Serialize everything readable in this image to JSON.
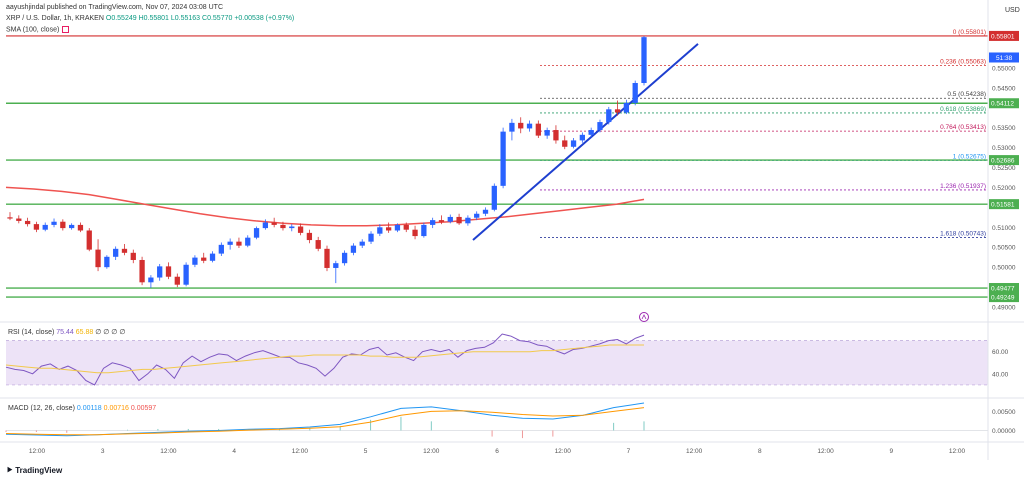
{
  "header": {
    "published": "aayushjindal published on TradingView.com, Nov 07, 2024 03:08 UTC",
    "symbol": "XRP / U.S. Dollar, 1h, KRAKEN",
    "ohlc": "O0.55249 H0.55801 L0.55163 C0.55770 +0.00538 (+0.97%)",
    "sma": "SMA (100, close)",
    "currency": "USD",
    "countdown": "51:38"
  },
  "indicators": {
    "rsi": {
      "label": "RSI (14, close)",
      "value": "75.44",
      "ma": "65.88",
      "extras": "∅ ∅ ∅ ∅"
    },
    "macd": {
      "label": "MACD (12, 26, close)",
      "v1": "0.00118",
      "v2": "0.00716",
      "v3": "0.00597"
    }
  },
  "branding": {
    "name": "TradingView"
  },
  "colors": {
    "up": "#2962ff",
    "down": "#d32f2f",
    "sma": "#ef5350",
    "support": "#4caf50",
    "trend": "#1e3fcf",
    "rsi_band": "#ede3f7",
    "macd": "#2196f3",
    "signal": "#ff9800"
  },
  "chart_data": {
    "type": "candlestick",
    "x_ticks": [
      "12:00",
      "3",
      "12:00",
      "4",
      "12:00",
      "5",
      "12:00",
      "6",
      "12:00",
      "7",
      "12:00",
      "8",
      "12:00",
      "9",
      "12:00"
    ],
    "y_ticks": [
      "0.55000",
      "0.54500",
      "0.53500",
      "0.53000",
      "0.52500",
      "0.52000",
      "0.51000",
      "0.50500",
      "0.50000",
      "0.49000"
    ],
    "ylim": [
      0.488,
      0.561
    ],
    "price_tags": [
      {
        "value": 0.55801,
        "label": "0.55801",
        "color": "#d32f2f"
      },
      {
        "value": 0.54112,
        "label": "0.54112",
        "color": "#4caf50"
      },
      {
        "value": 0.52686,
        "label": "0.52686",
        "color": "#4caf50"
      },
      {
        "value": 0.51581,
        "label": "0.51581",
        "color": "#4caf50"
      },
      {
        "value": 0.49477,
        "label": "0.49477",
        "color": "#4caf50"
      },
      {
        "value": 0.49249,
        "label": "0.49249",
        "color": "#4caf50"
      }
    ],
    "fib_levels": [
      {
        "ratio": "0",
        "price": 0.55801,
        "label": "0 (0.55801)",
        "color": "#d32f2f"
      },
      {
        "ratio": "0.236",
        "price": 0.55063,
        "label": "0.236 (0.55063)",
        "color": "#d32f2f"
      },
      {
        "ratio": "0.5",
        "price": 0.54238,
        "label": "0.5 (0.54238)",
        "color": "#444444"
      },
      {
        "ratio": "0.618",
        "price": 0.53869,
        "label": "0.618 (0.53869)",
        "color": "#2e9e6b"
      },
      {
        "ratio": "0.764",
        "price": 0.53413,
        "label": "0.764 (0.53413)",
        "color": "#c2185b"
      },
      {
        "ratio": "1",
        "price": 0.52675,
        "label": "1 (0.52675)",
        "color": "#2196f3"
      },
      {
        "ratio": "1.236",
        "price": 0.51937,
        "label": "1.236 (0.51937)",
        "color": "#9c27b0"
      },
      {
        "ratio": "1.618",
        "price": 0.50743,
        "label": "1.618 (0.50743)",
        "color": "#303f9f"
      }
    ],
    "support_lines": [
      0.54112,
      0.52686,
      0.51581,
      0.49477,
      0.49249
    ],
    "resistance_line": 0.55801,
    "candles": [
      [
        0.5125,
        0.5138,
        0.5118,
        0.5122
      ],
      [
        0.5122,
        0.513,
        0.511,
        0.5116
      ],
      [
        0.5116,
        0.5124,
        0.5102,
        0.5108
      ],
      [
        0.5108,
        0.5114,
        0.5088,
        0.5094
      ],
      [
        0.5094,
        0.5112,
        0.509,
        0.5106
      ],
      [
        0.5106,
        0.5122,
        0.51,
        0.5114
      ],
      [
        0.5114,
        0.512,
        0.5092,
        0.5098
      ],
      [
        0.5098,
        0.511,
        0.5094,
        0.5106
      ],
      [
        0.5106,
        0.5112,
        0.5088,
        0.5092
      ],
      [
        0.5092,
        0.5098,
        0.504,
        0.5044
      ],
      [
        0.5044,
        0.507,
        0.499,
        0.5
      ],
      [
        0.5,
        0.503,
        0.4996,
        0.5026
      ],
      [
        0.5026,
        0.5052,
        0.5018,
        0.5046
      ],
      [
        0.5046,
        0.5058,
        0.503,
        0.5036
      ],
      [
        0.5036,
        0.5044,
        0.501,
        0.5018
      ],
      [
        0.5018,
        0.5026,
        0.4955,
        0.4962
      ],
      [
        0.4962,
        0.498,
        0.4948,
        0.4974
      ],
      [
        0.4974,
        0.5008,
        0.4966,
        0.5002
      ],
      [
        0.5002,
        0.5012,
        0.497,
        0.4976
      ],
      [
        0.4976,
        0.4984,
        0.495,
        0.4956
      ],
      [
        0.4956,
        0.5012,
        0.4952,
        0.5006
      ],
      [
        0.5006,
        0.503,
        0.5,
        0.5024
      ],
      [
        0.5024,
        0.5036,
        0.501,
        0.5016
      ],
      [
        0.5016,
        0.504,
        0.5012,
        0.5034
      ],
      [
        0.5034,
        0.5062,
        0.5028,
        0.5056
      ],
      [
        0.5056,
        0.5072,
        0.5044,
        0.5064
      ],
      [
        0.5064,
        0.5074,
        0.5048,
        0.5054
      ],
      [
        0.5054,
        0.508,
        0.505,
        0.5074
      ],
      [
        0.5074,
        0.5102,
        0.507,
        0.5098
      ],
      [
        0.5098,
        0.512,
        0.5094,
        0.5112
      ],
      [
        0.5112,
        0.5124,
        0.51,
        0.5106
      ],
      [
        0.5106,
        0.5114,
        0.5092,
        0.5098
      ],
      [
        0.5098,
        0.5108,
        0.509,
        0.5102
      ],
      [
        0.5102,
        0.511,
        0.508,
        0.5086
      ],
      [
        0.5086,
        0.5094,
        0.506,
        0.5068
      ],
      [
        0.5068,
        0.5076,
        0.504,
        0.5046
      ],
      [
        0.5046,
        0.5054,
        0.499,
        0.4998
      ],
      [
        0.4998,
        0.5016,
        0.496,
        0.501
      ],
      [
        0.501,
        0.5042,
        0.5004,
        0.5036
      ],
      [
        0.5036,
        0.506,
        0.503,
        0.5054
      ],
      [
        0.5054,
        0.507,
        0.5048,
        0.5064
      ],
      [
        0.5064,
        0.509,
        0.5058,
        0.5084
      ],
      [
        0.5084,
        0.5108,
        0.5078,
        0.51
      ],
      [
        0.51,
        0.5112,
        0.5086,
        0.5092
      ],
      [
        0.5092,
        0.511,
        0.5088,
        0.5106
      ],
      [
        0.5106,
        0.5112,
        0.5088,
        0.5094
      ],
      [
        0.5094,
        0.5104,
        0.507,
        0.5078
      ],
      [
        0.5078,
        0.5112,
        0.5074,
        0.5106
      ],
      [
        0.5106,
        0.5124,
        0.5098,
        0.5118
      ],
      [
        0.5118,
        0.513,
        0.5108,
        0.5114
      ],
      [
        0.5114,
        0.5132,
        0.511,
        0.5126
      ],
      [
        0.5126,
        0.5134,
        0.5106,
        0.511
      ],
      [
        0.511,
        0.513,
        0.5104,
        0.5124
      ],
      [
        0.5124,
        0.514,
        0.5118,
        0.5134
      ],
      [
        0.5134,
        0.515,
        0.5128,
        0.5144
      ],
      [
        0.5144,
        0.521,
        0.514,
        0.5204
      ],
      [
        0.5204,
        0.535,
        0.5198,
        0.534
      ],
      [
        0.534,
        0.5372,
        0.5318,
        0.5362
      ],
      [
        0.5362,
        0.5376,
        0.5336,
        0.5348
      ],
      [
        0.5348,
        0.5368,
        0.534,
        0.536
      ],
      [
        0.536,
        0.5368,
        0.5324,
        0.533
      ],
      [
        0.533,
        0.535,
        0.5322,
        0.5344
      ],
      [
        0.5344,
        0.5356,
        0.531,
        0.5318
      ],
      [
        0.5318,
        0.533,
        0.5296,
        0.5302
      ],
      [
        0.5302,
        0.5324,
        0.5298,
        0.5318
      ],
      [
        0.5318,
        0.5338,
        0.5312,
        0.5332
      ],
      [
        0.5332,
        0.535,
        0.5326,
        0.5344
      ],
      [
        0.5344,
        0.537,
        0.5338,
        0.5364
      ],
      [
        0.5364,
        0.5402,
        0.5358,
        0.5396
      ],
      [
        0.5396,
        0.5418,
        0.538,
        0.5388
      ],
      [
        0.5388,
        0.542,
        0.5384,
        0.5412
      ],
      [
        0.5412,
        0.5468,
        0.5406,
        0.5462
      ],
      [
        0.5462,
        0.558,
        0.5456,
        0.5577
      ]
    ],
    "sma": [
      0.52,
      0.5196,
      0.519,
      0.5182,
      0.517,
      0.5158,
      0.5146,
      0.5134,
      0.5124,
      0.5116,
      0.511,
      0.5106,
      0.5104,
      0.5104,
      0.5106,
      0.511,
      0.5114,
      0.512,
      0.5126,
      0.5134,
      0.5142,
      0.515,
      0.5158,
      0.517
    ],
    "trendline": [
      {
        "i": 0.0,
        "p": 0.5068
      },
      {
        "i": 1.0,
        "p": 0.556
      }
    ],
    "rsi": {
      "ylim": [
        20,
        85
      ],
      "ticks": [
        "60.00",
        "40.00"
      ],
      "band": [
        70,
        30
      ],
      "values": [
        46,
        44,
        43,
        40,
        47,
        49,
        44,
        47,
        43,
        34,
        30,
        45,
        50,
        48,
        45,
        34,
        40,
        48,
        44,
        36,
        50,
        56,
        51,
        55,
        58,
        57,
        52,
        56,
        59,
        61,
        58,
        55,
        55,
        50,
        48,
        45,
        38,
        45,
        55,
        58,
        57,
        62,
        64,
        57,
        59,
        55,
        52,
        60,
        62,
        60,
        62,
        55,
        61,
        63,
        64,
        68,
        76,
        74,
        70,
        69,
        66,
        65,
        61,
        58,
        62,
        63,
        65,
        67,
        70,
        71,
        67,
        72,
        75
      ],
      "ma": [
        48,
        47,
        46,
        45,
        45,
        44,
        43,
        42,
        41,
        41,
        42,
        43,
        44,
        44,
        45,
        46,
        47,
        48,
        49,
        50,
        51,
        52,
        53,
        54,
        55,
        56,
        56,
        57,
        57,
        57,
        57,
        57,
        56,
        56,
        55,
        55,
        55,
        56,
        57,
        58,
        59,
        60,
        60,
        60,
        60,
        60,
        60,
        61,
        61,
        62,
        63,
        64,
        65,
        66,
        66,
        66,
        66
      ]
    },
    "macd": {
      "ticks": [
        "0.00500",
        "0.00000"
      ],
      "macd_line": [
        -0.001,
        -0.0012,
        -0.0014,
        -0.0011,
        -0.0008,
        -0.0005,
        -0.0002,
        0.0,
        0.0003,
        0.0005,
        0.0009,
        0.0016,
        0.0036,
        0.0058,
        0.0062,
        0.0052,
        0.004,
        0.0032,
        0.003,
        0.004,
        0.006,
        0.0072
      ],
      "signal_line": [
        -0.0008,
        -0.001,
        -0.0011,
        -0.0011,
        -0.0009,
        -0.0007,
        -0.0004,
        -0.0002,
        0.0001,
        0.0003,
        0.0006,
        0.001,
        0.0022,
        0.004,
        0.005,
        0.0052,
        0.0048,
        0.0042,
        0.0038,
        0.004,
        0.005,
        0.006
      ]
    }
  }
}
